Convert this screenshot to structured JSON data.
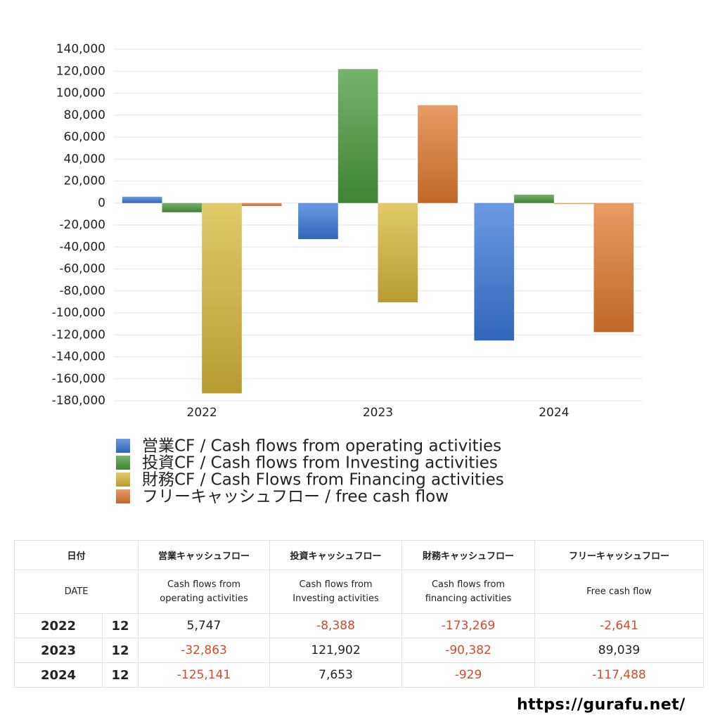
{
  "chart_data": {
    "type": "bar",
    "categories": [
      "2022",
      "2023",
      "2024"
    ],
    "series": [
      {
        "name": "営業CF / Cash flows from operating activities",
        "color": "#3a78d8",
        "values": [
          5747,
          -32863,
          -125141
        ]
      },
      {
        "name": "投資CF / Cash flows from Investing activities",
        "color": "#4a9a3c",
        "values": [
          -8388,
          121902,
          7653
        ]
      },
      {
        "name": "財務CF / Cash Flows from Financing activities",
        "color": "#d8b838",
        "values": [
          -173269,
          -90382,
          -929
        ]
      },
      {
        "name": "フリーキャッシュフロー / free cash flow",
        "color": "#e07a30",
        "values": [
          -2641,
          89039,
          -117488
        ]
      }
    ],
    "ylim": [
      -180000,
      140000
    ],
    "yticks": [
      {
        "value": -180000,
        "label": "-180,000"
      },
      {
        "value": -160000,
        "label": "-160,000"
      },
      {
        "value": -140000,
        "label": "-140,000"
      },
      {
        "value": -120000,
        "label": "-120,000"
      },
      {
        "value": -100000,
        "label": "-100,000"
      },
      {
        "value": -80000,
        "label": "-80,000"
      },
      {
        "value": -60000,
        "label": "-60,000"
      },
      {
        "value": -40000,
        "label": "-40,000"
      },
      {
        "value": -20000,
        "label": "-20,000"
      },
      0,
      {
        "value": 20000,
        "label": "20,000"
      },
      {
        "value": 40000,
        "label": "40,000"
      },
      {
        "value": 60000,
        "label": "60,000"
      },
      {
        "value": 80000,
        "label": "80,000"
      },
      {
        "value": 100000,
        "label": "100,000"
      },
      {
        "value": 120000,
        "label": "120,000"
      },
      {
        "value": 140000,
        "label": "140,000"
      }
    ],
    "grid": true,
    "legend": "bottom"
  },
  "table": {
    "header": [
      [
        "日付",
        "営業キャッシュフロー",
        "投資キャッシュフロー",
        "財務キャッシュフロー",
        "フリーキャッシュフロー"
      ],
      [
        "DATE",
        "Cash flows from\noperating activities",
        "Cash flows from\nInvesting activities",
        "Cash flows from\nfinancing activities",
        "Free cash flow"
      ]
    ],
    "rows": [
      [
        "2022",
        "12",
        "5,747",
        "-8,388",
        "-173,269",
        "-2,641"
      ],
      [
        "2023",
        "12",
        "-32,863",
        "121,902",
        "-90,382",
        "89,039"
      ],
      [
        "2024",
        "12",
        "-125,141",
        "7,653",
        "-929",
        "-117,488"
      ]
    ],
    "negative_color": "#d44a2a"
  },
  "footer": "https://gurafu.net/"
}
